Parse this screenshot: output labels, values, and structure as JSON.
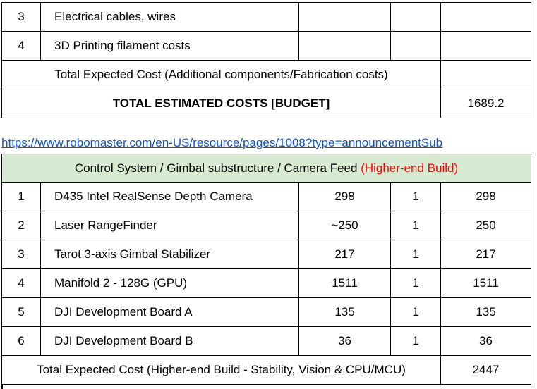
{
  "top_table": {
    "rows": [
      {
        "num": "3",
        "desc": "Electrical cables, wires",
        "price": "",
        "qty": "",
        "total": ""
      },
      {
        "num": "4",
        "desc": "3D Printing filament costs",
        "price": "",
        "qty": "",
        "total": ""
      }
    ],
    "subtotal": {
      "label": "Total Expected Cost (Additional components/Fabrication costs)",
      "value": ""
    },
    "grand_total": {
      "label": "TOTAL ESTIMATED COSTS [BUDGET]",
      "value": "1689.2"
    }
  },
  "link": {
    "text": "https://www.robomaster.com/en-US/resource/pages/1008?type=announcementSub"
  },
  "bottom_table": {
    "header": {
      "title": "Control System / Gimbal substructure / Camera Feed",
      "note": "(Higher-end Build)"
    },
    "rows": [
      {
        "num": "1",
        "desc": "D435 Intel RealSense Depth Camera",
        "price": "298",
        "qty": "1",
        "total": "298"
      },
      {
        "num": "2",
        "desc": "Laser RangeFinder",
        "price": "~250",
        "qty": "1",
        "total": "250"
      },
      {
        "num": "3",
        "desc": "Tarot 3-axis Gimbal Stabilizer",
        "price": "217",
        "qty": "1",
        "total": "217"
      },
      {
        "num": "4",
        "desc": "Manifold 2 - 128G (GPU)",
        "price": "1511",
        "qty": "1",
        "total": "1511"
      },
      {
        "num": "5",
        "desc": "DJI Development Board A",
        "price": "135",
        "qty": "1",
        "total": "135"
      },
      {
        "num": "6",
        "desc": "DJI Development Board B",
        "price": "36",
        "qty": "1",
        "total": "36"
      }
    ],
    "total": {
      "label": "Total Expected Cost (Higher-end Build - Stability, Vision & CPU/MCU)",
      "value": "2447"
    }
  },
  "colors": {
    "header_bg": "#d9ead3",
    "highlight": "#ff0000",
    "link": "#1155cc"
  }
}
